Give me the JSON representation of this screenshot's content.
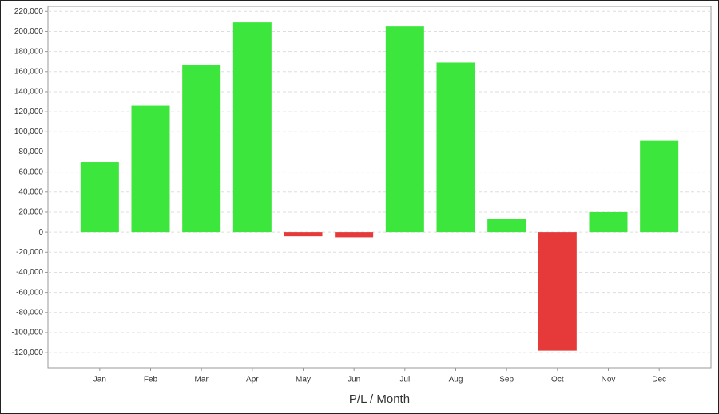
{
  "chart_data": {
    "type": "bar",
    "x_label": "P/L / Month",
    "categories": [
      "Jan",
      "Feb",
      "Mar",
      "Apr",
      "May",
      "Jun",
      "Jul",
      "Aug",
      "Sep",
      "Oct",
      "Nov",
      "Dec"
    ],
    "values": [
      70000,
      126000,
      167000,
      209000,
      -4000,
      -5000,
      205000,
      169000,
      13000,
      -118000,
      20000,
      91000
    ],
    "positive_color": "#3de63d",
    "negative_color": "#e63939",
    "ylim": [
      -135000,
      225000
    ],
    "yticks": [
      {
        "value": -120000,
        "label": "-120,000"
      },
      {
        "value": -100000,
        "label": "-100,000"
      },
      {
        "value": -80000,
        "label": "-80,000"
      },
      {
        "value": -60000,
        "label": "-60,000"
      },
      {
        "value": -40000,
        "label": "-40,000"
      },
      {
        "value": -20000,
        "label": "-20,000"
      },
      0,
      {
        "value": 20000,
        "label": "20,000"
      },
      {
        "value": 40000,
        "label": "40,000"
      },
      {
        "value": 60000,
        "label": "60,000"
      },
      {
        "value": 80000,
        "label": "80,000"
      },
      {
        "value": 100000,
        "label": "100,000"
      },
      {
        "value": 120000,
        "label": "120,000"
      },
      {
        "value": 140000,
        "label": "140,000"
      },
      {
        "value": 160000,
        "label": "160,000"
      },
      {
        "value": 180000,
        "label": "180,000"
      },
      {
        "value": 200000,
        "label": "200,000"
      },
      {
        "value": 220000,
        "label": "220,000"
      }
    ],
    "grid": true
  }
}
